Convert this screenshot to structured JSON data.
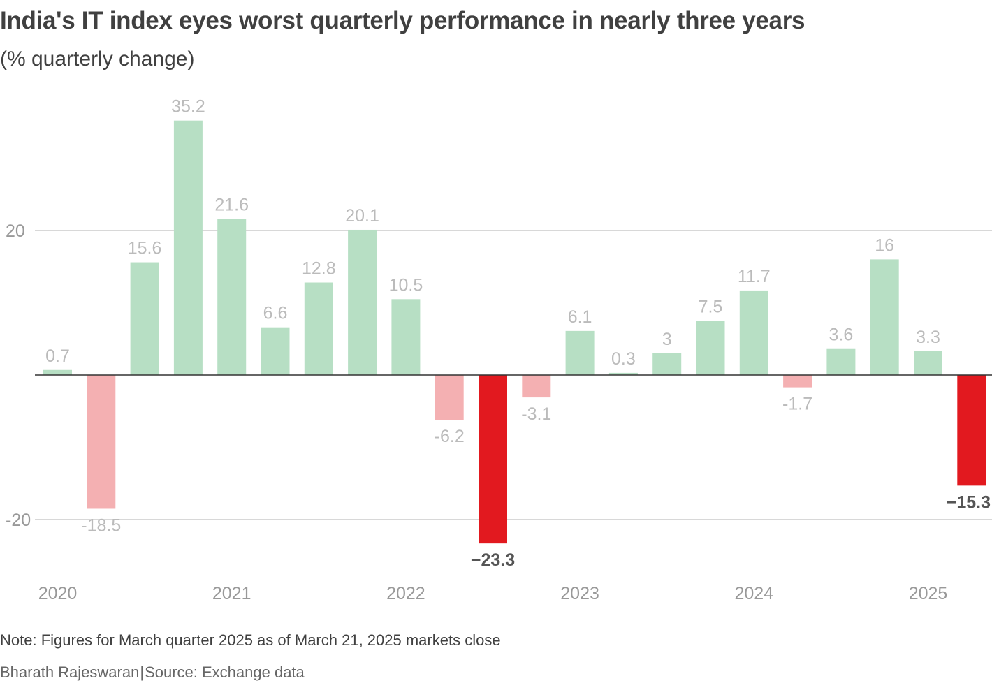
{
  "title": "India's IT index eyes worst quarterly performance in nearly three years",
  "subtitle": "(% quarterly change)",
  "note": "Note: Figures for March quarter 2025 as of March 21, 2025 markets close",
  "credit": {
    "author": "Bharath Rajeswaran",
    "separator": "|",
    "source": "Source: Exchange data"
  },
  "colors": {
    "positive": "#b7dfc4",
    "negative": "#f4b0b2",
    "highlight": "#e2191f",
    "gridline": "#cccccc",
    "zero_line": "#333333",
    "label": "#bbbbbb",
    "highlight_label": "#555555",
    "axis_text": "#999999"
  },
  "chart_data": {
    "type": "bar",
    "title": "India's IT index eyes worst quarterly performance in nearly three years",
    "ylabel": "% quarterly change",
    "ylim": [
      -30,
      40
    ],
    "gridlines": [
      20,
      -20
    ],
    "ytick_labels": [
      "20",
      "-20"
    ],
    "year_labels": [
      "2020",
      "2021",
      "2022",
      "2023",
      "2024",
      "2025"
    ],
    "values": [
      0.7,
      -18.5,
      15.6,
      35.2,
      21.6,
      6.6,
      12.8,
      20.1,
      10.5,
      -6.2,
      -23.3,
      -3.1,
      6.1,
      0.3,
      3,
      7.5,
      11.7,
      -1.7,
      3.6,
      16,
      3.3,
      -15.3
    ],
    "labels": [
      "0.7",
      "-18.5",
      "15.6",
      "35.2",
      "21.6",
      "6.6",
      "12.8",
      "20.1",
      "10.5",
      "-6.2",
      "−23.3",
      "-3.1",
      "6.1",
      "0.3",
      "3",
      "7.5",
      "11.7",
      "-1.7",
      "3.6",
      "16",
      "3.3",
      "−15.3"
    ],
    "highlighted": [
      false,
      false,
      false,
      false,
      false,
      false,
      false,
      false,
      false,
      false,
      true,
      false,
      false,
      false,
      false,
      false,
      false,
      false,
      false,
      false,
      false,
      true
    ]
  }
}
